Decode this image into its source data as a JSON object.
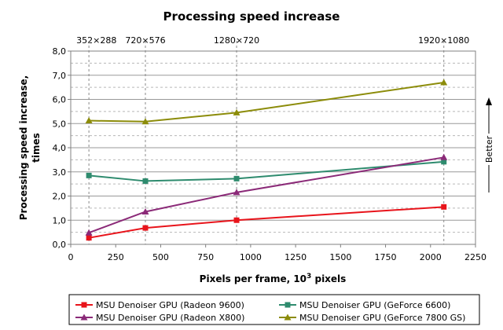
{
  "chart_data": {
    "type": "line",
    "title": "Processing speed increase",
    "xlabel": "Pixels per frame, 10",
    "xlabel_sup": "3",
    "xlabel_tail": " pixels",
    "ylabel_line1": "Processing speed increase,",
    "ylabel_line2": "times",
    "xlim": [
      0,
      2250
    ],
    "ylim": [
      0,
      8
    ],
    "x_ticks": [
      0,
      250,
      500,
      750,
      1000,
      1250,
      1500,
      1750,
      2000,
      2250
    ],
    "y_ticks": [
      "0,0",
      "1,0",
      "2,0",
      "3,0",
      "4,0",
      "5,0",
      "6,0",
      "7,0",
      "8,0"
    ],
    "x": [
      101,
      415,
      922,
      2074
    ],
    "resolutions": [
      "352×288",
      "720×576",
      "1280×720",
      "1920×1080"
    ],
    "better_label": "Better",
    "series": [
      {
        "name": "MSU Denoiser GPU (Radeon 9600)",
        "color": "#e8141b",
        "marker": "square",
        "values": [
          0.27,
          0.68,
          1.0,
          1.55
        ]
      },
      {
        "name": "MSU Denoiser GPU (GeForce 6600)",
        "color": "#2e8b6e",
        "marker": "square",
        "values": [
          2.85,
          2.62,
          2.72,
          3.42
        ]
      },
      {
        "name": "MSU Denoiser GPU (Radeon X800)",
        "color": "#8b2a78",
        "marker": "triangle",
        "values": [
          0.48,
          1.35,
          2.15,
          3.6
        ]
      },
      {
        "name": "MSU Denoiser GPU (GeForce 7800 GS)",
        "color": "#8c8c0a",
        "marker": "triangle",
        "values": [
          5.12,
          5.08,
          5.45,
          6.7
        ]
      }
    ],
    "grid": true,
    "legend_position": "bottom"
  }
}
